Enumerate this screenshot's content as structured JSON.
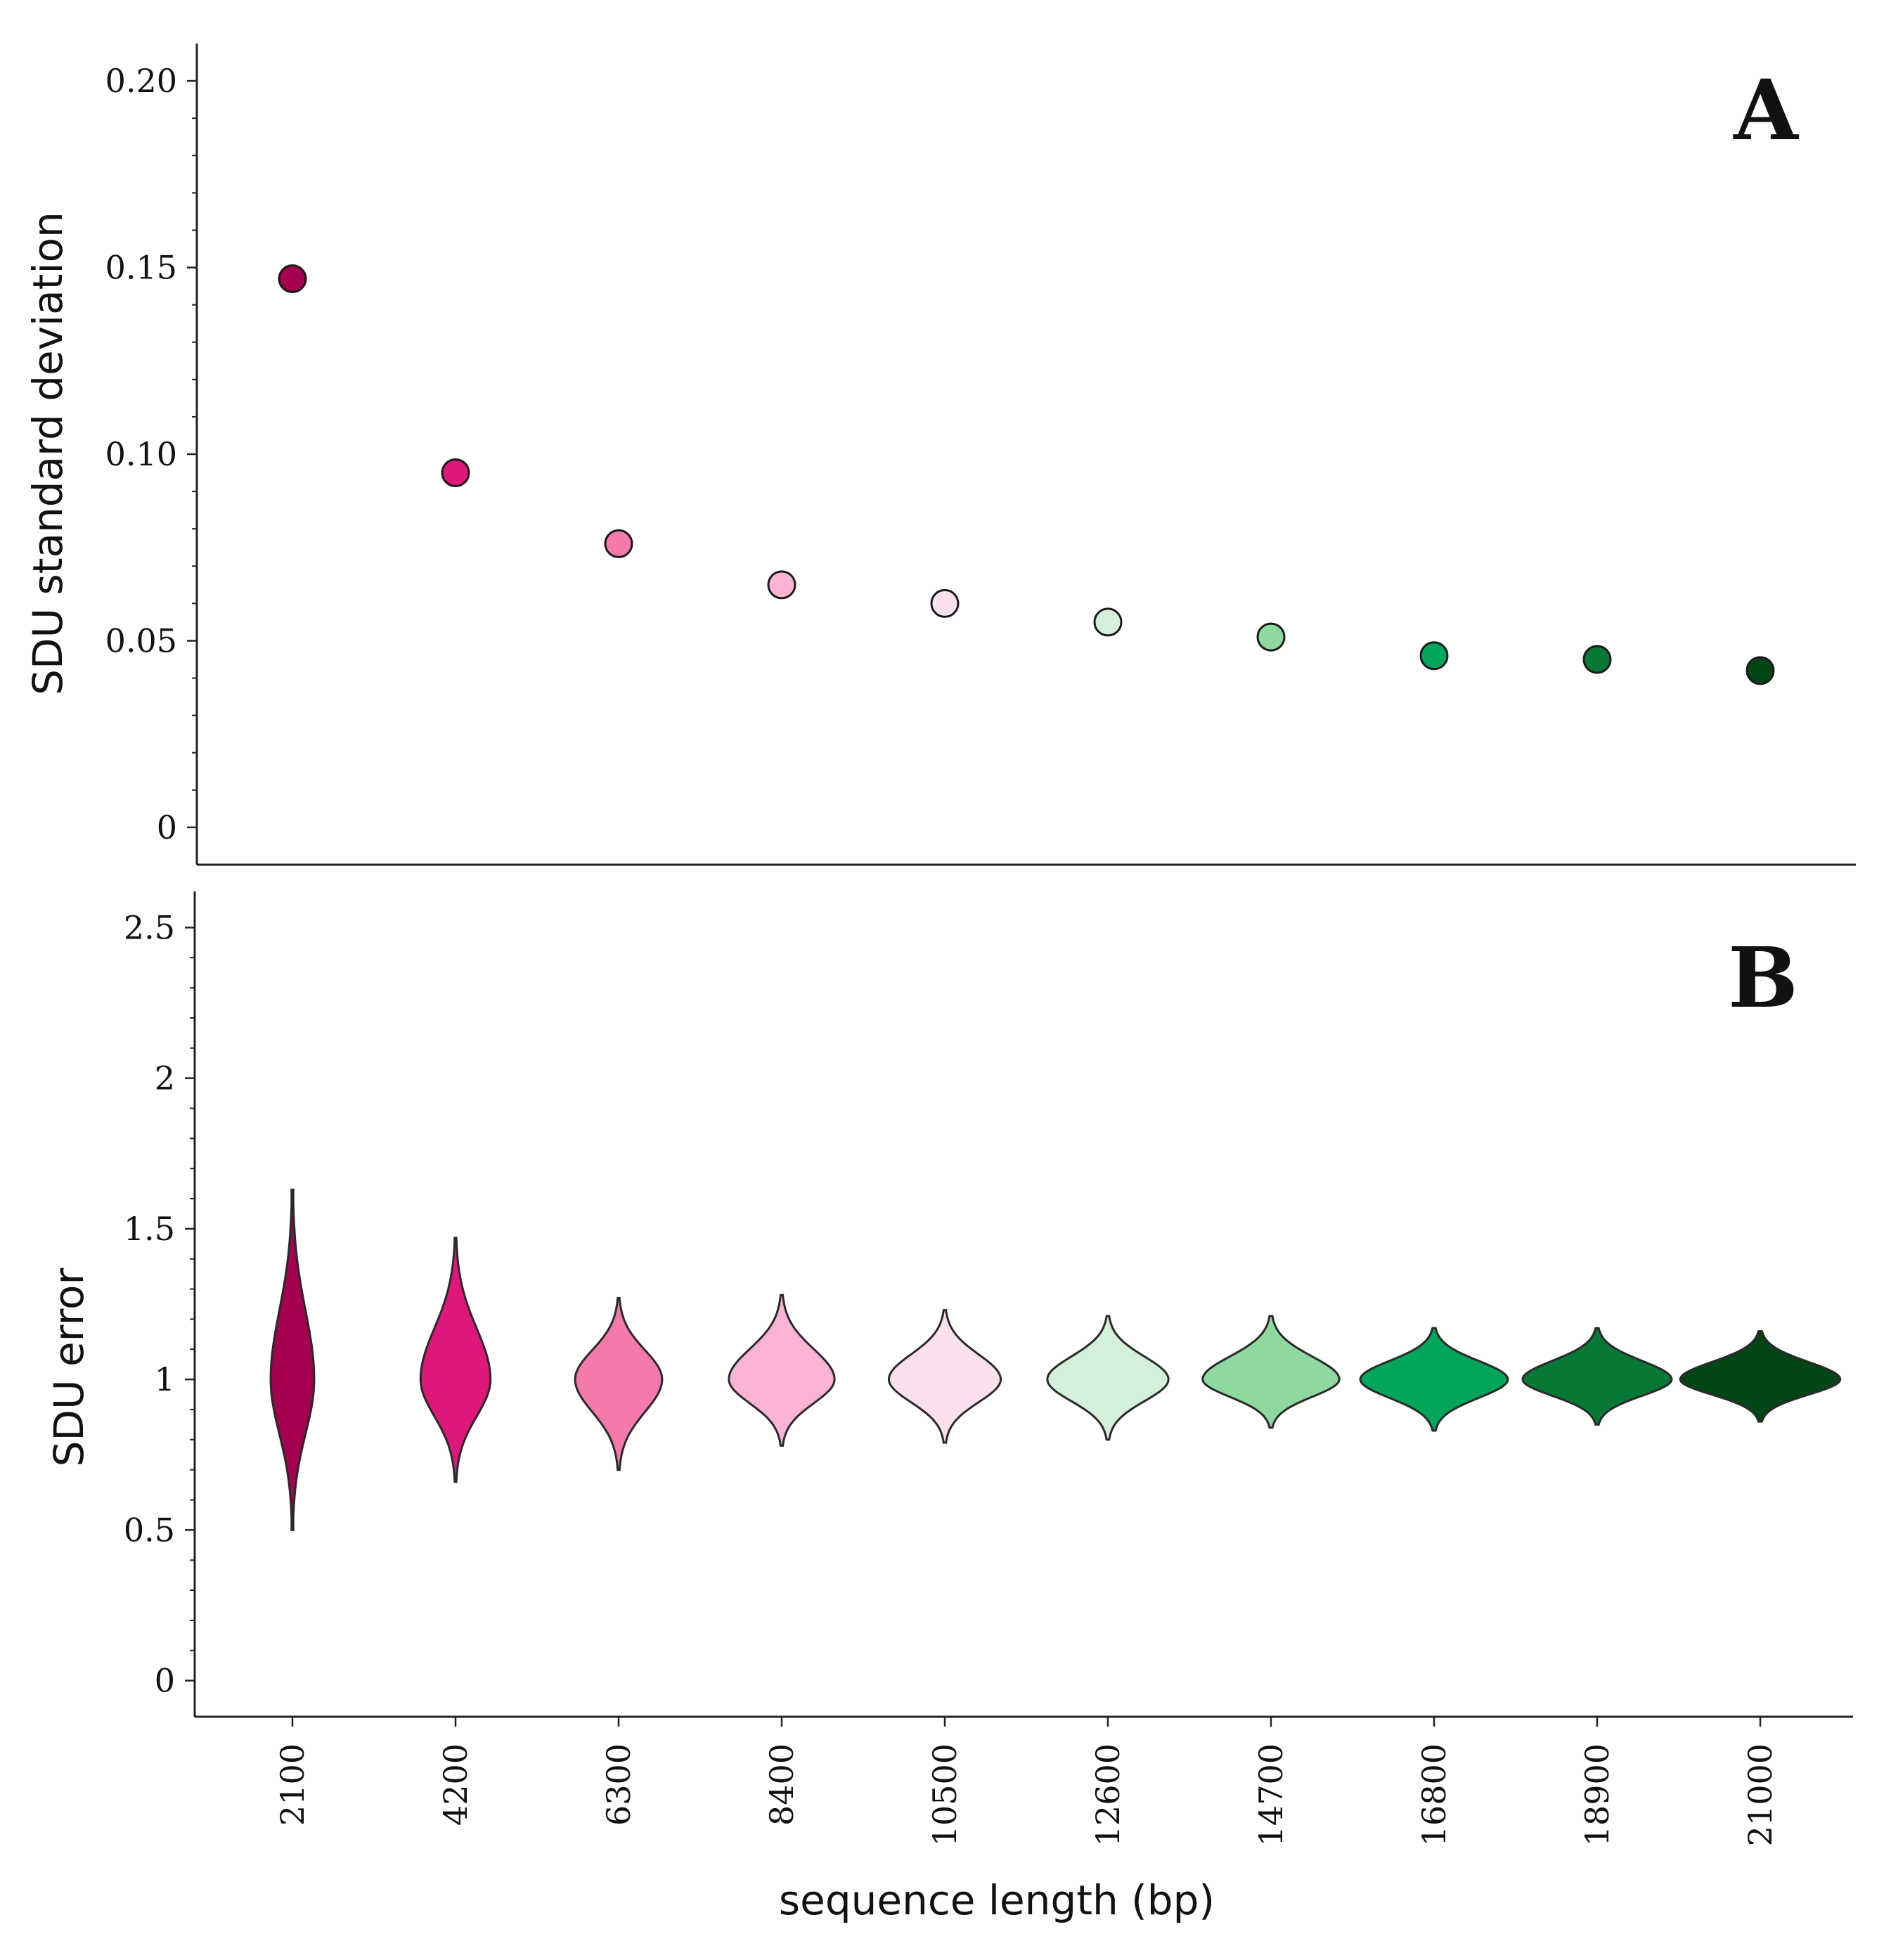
{
  "chart_data": [
    {
      "type": "scatter",
      "panel_label": "A",
      "ylabel": "SDU standard deviation",
      "xlabel": "",
      "categories": [
        "2100",
        "4200",
        "6300",
        "8400",
        "10500",
        "12600",
        "14700",
        "16800",
        "18900",
        "21000"
      ],
      "values": [
        0.147,
        0.095,
        0.076,
        0.065,
        0.06,
        0.055,
        0.051,
        0.046,
        0.045,
        0.042
      ],
      "colors": [
        "#a5004f",
        "#e0177a",
        "#f47aab",
        "#fbb4d6",
        "#fde0ef",
        "#d4f0d8",
        "#8fd9a0",
        "#01a65a",
        "#077835",
        "#004516"
      ],
      "ylim": [
        -0.01,
        0.21
      ],
      "yticks": [
        {
          "value": 0.2,
          "label": "0.20"
        },
        {
          "value": 0.15,
          "label": "0.15"
        },
        {
          "value": 0.1,
          "label": "0.10"
        },
        {
          "value": 0.05,
          "label": "0.05"
        },
        {
          "value": 0,
          "label": "0"
        }
      ],
      "grid": false
    },
    {
      "type": "violin",
      "panel_label": "B",
      "ylabel": "SDU error",
      "xlabel": "sequence length (bp)",
      "categories": [
        "2100",
        "4200",
        "6300",
        "8400",
        "10500",
        "12600",
        "14700",
        "16800",
        "18900",
        "21000"
      ],
      "series": [
        {
          "name": "2100",
          "min": 0.5,
          "max": 1.63,
          "center": 1.0,
          "half_width_bp": 280
        },
        {
          "name": "4200",
          "min": 0.66,
          "max": 1.47,
          "center": 1.0,
          "half_width_bp": 450
        },
        {
          "name": "6300",
          "min": 0.7,
          "max": 1.27,
          "center": 1.0,
          "half_width_bp": 560
        },
        {
          "name": "8400",
          "min": 0.78,
          "max": 1.28,
          "center": 1.0,
          "half_width_bp": 680
        },
        {
          "name": "10500",
          "min": 0.79,
          "max": 1.23,
          "center": 1.0,
          "half_width_bp": 720
        },
        {
          "name": "12600",
          "min": 0.8,
          "max": 1.21,
          "center": 1.0,
          "half_width_bp": 780
        },
        {
          "name": "14700",
          "min": 0.84,
          "max": 1.21,
          "center": 1.0,
          "half_width_bp": 880
        },
        {
          "name": "16800",
          "min": 0.83,
          "max": 1.17,
          "center": 1.0,
          "half_width_bp": 950
        },
        {
          "name": "18900",
          "min": 0.85,
          "max": 1.17,
          "center": 1.0,
          "half_width_bp": 960
        },
        {
          "name": "21000",
          "min": 0.86,
          "max": 1.16,
          "center": 1.0,
          "half_width_bp": 1030
        }
      ],
      "colors": [
        "#a5004f",
        "#e0177a",
        "#f47aab",
        "#fbb4d6",
        "#fde0ef",
        "#d4f0d8",
        "#8fd9a0",
        "#01a65a",
        "#077835",
        "#004516"
      ],
      "ylim": [
        -0.12,
        2.62
      ],
      "yticks": [
        {
          "value": 2.5,
          "label": "2.5"
        },
        {
          "value": 2,
          "label": "2"
        },
        {
          "value": 1.5,
          "label": "1.5"
        },
        {
          "value": 1,
          "label": "1"
        },
        {
          "value": 0.5,
          "label": "0.5"
        },
        {
          "value": 0,
          "label": "0"
        }
      ],
      "grid": false
    }
  ]
}
